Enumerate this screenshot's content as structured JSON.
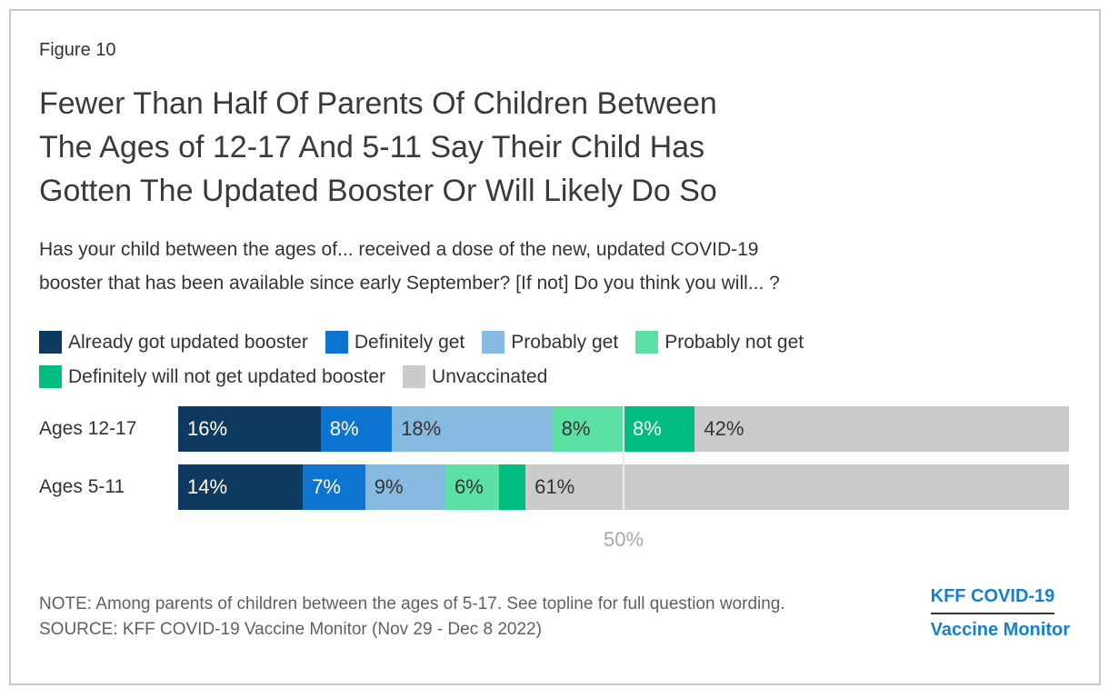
{
  "figure_label": "Figure 10",
  "title_lines": [
    "Fewer Than Half Of Parents Of Children Between",
    "The Ages of 12-17 And 5-11 Say Their Child Has",
    "Gotten The Updated Booster Or Will Likely Do So"
  ],
  "subtitle_lines": [
    "Has your child between the ages of... received a dose of the new, updated COVID-19",
    "booster that has been available since early September? [If not] Do you think you will... ?"
  ],
  "chart_data": {
    "type": "bar",
    "orientation": "horizontal-stacked",
    "categories": [
      "Ages 12-17",
      "Ages 5-11"
    ],
    "series": [
      {
        "name": "Already got updated booster",
        "color": "#0d3a5e",
        "label_color": "#ffffff",
        "values": [
          16,
          14
        ],
        "labels": [
          "16%",
          "14%"
        ]
      },
      {
        "name": "Definitely get",
        "color": "#0d75d1",
        "label_color": "#ffffff",
        "values": [
          8,
          7
        ],
        "labels": [
          "8%",
          "7%"
        ]
      },
      {
        "name": "Probably get",
        "color": "#86bae1",
        "label_color": "#333333",
        "values": [
          18,
          9
        ],
        "labels": [
          "18%",
          "9%"
        ]
      },
      {
        "name": "Probably not get",
        "color": "#5ce0a3",
        "label_color": "#333333",
        "values": [
          8,
          6
        ],
        "labels": [
          "8%",
          "6%"
        ]
      },
      {
        "name": "Definitely will not get updated booster",
        "color": "#02bd81",
        "label_color": "#ffffff",
        "values": [
          8,
          3
        ],
        "labels": [
          "8%",
          ""
        ]
      },
      {
        "name": "Unvaccinated",
        "color": "#cbcbcb",
        "label_color": "#333333",
        "values": [
          42,
          61
        ],
        "labels": [
          "42%",
          "61%"
        ]
      }
    ],
    "xlim": [
      0,
      100
    ],
    "gridline": {
      "value": 50,
      "label": "50%"
    },
    "legend_row_split": 4,
    "legend_position": "top"
  },
  "footer": {
    "note": "NOTE: Among parents of children between the ages of 5-17. See topline for full question wording.",
    "source": "SOURCE: KFF COVID-19 Vaccine Monitor (Nov 29 - Dec 8 2022)",
    "logo_line1": "KFF COVID-19",
    "logo_line2": "Vaccine Monitor",
    "logo_color": "#1480d4"
  }
}
